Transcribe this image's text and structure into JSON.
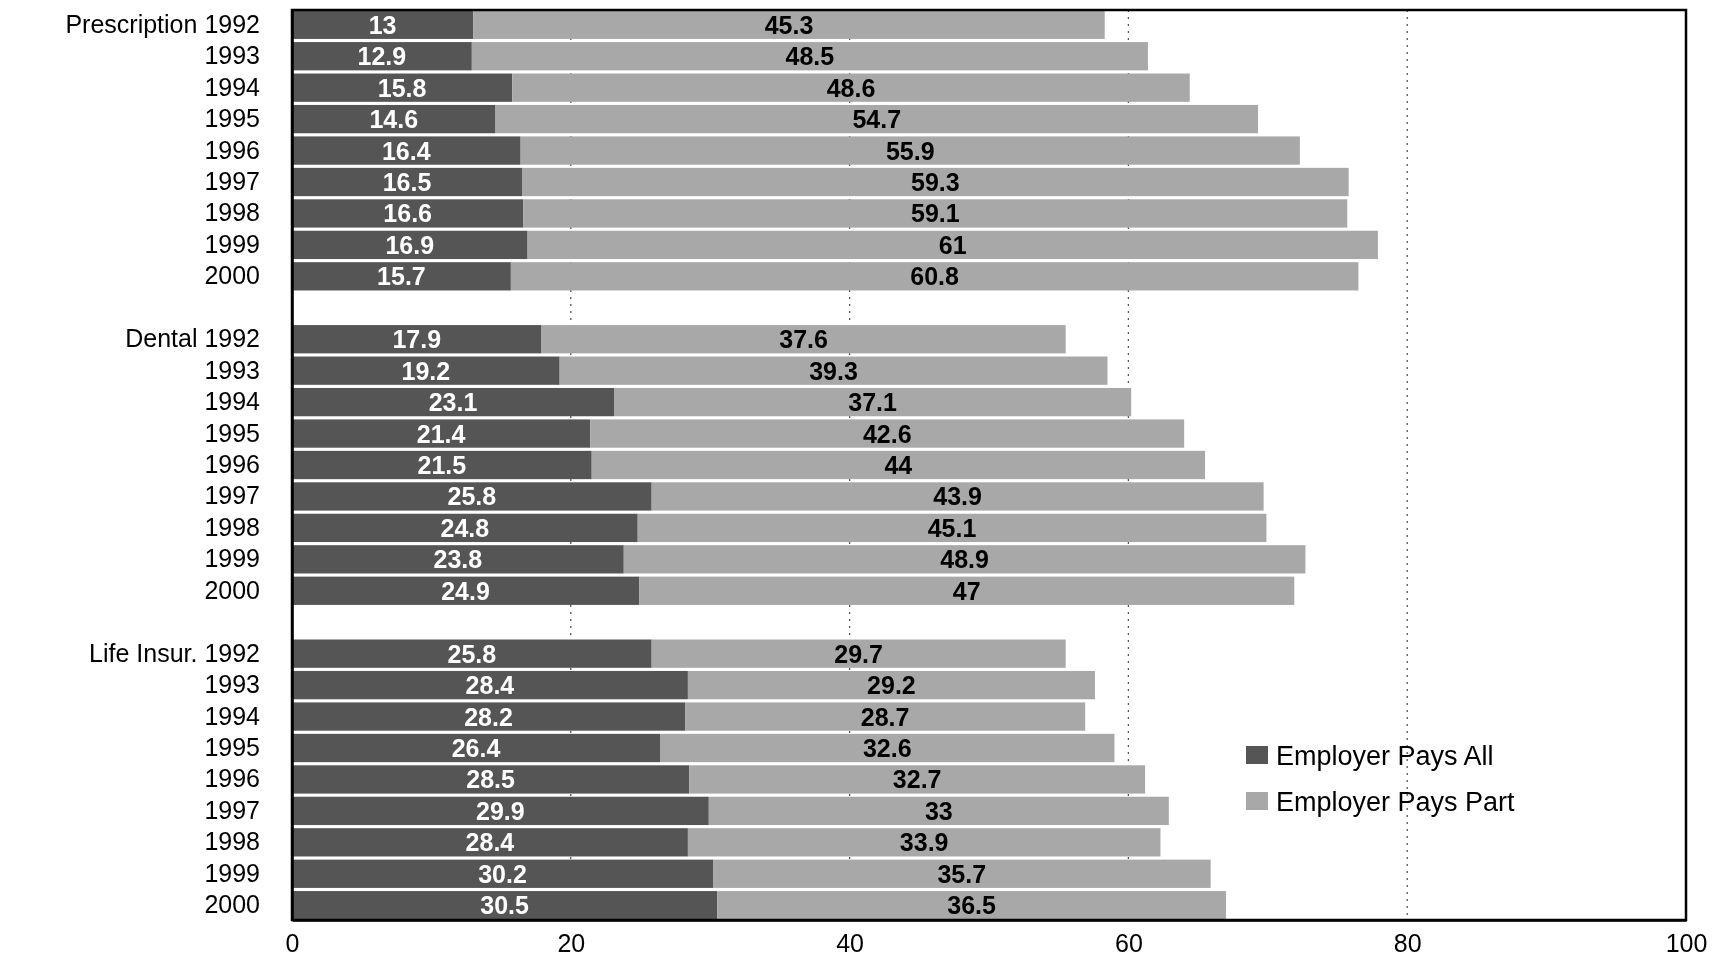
{
  "chart_data": {
    "type": "bar",
    "orientation": "horizontal",
    "stacked": true,
    "categories": [
      "Prescription 1992",
      "1993",
      "1994",
      "1995",
      "1996",
      "1997",
      "1998",
      "1999",
      "2000",
      null,
      "Dental 1992",
      "1993",
      "1994",
      "1995",
      "1996",
      "1997",
      "1998",
      "1999",
      "2000",
      null,
      "Life Insur. 1992",
      "1993",
      "1994",
      "1995",
      "1996",
      "1997",
      "1998",
      "1999",
      "2000"
    ],
    "series": [
      {
        "name": "Employer Pays All",
        "color": "#555555",
        "values": [
          13,
          12.9,
          15.8,
          14.6,
          16.4,
          16.5,
          16.6,
          16.9,
          15.7,
          null,
          17.9,
          19.2,
          23.1,
          21.4,
          21.5,
          25.8,
          24.8,
          23.8,
          24.9,
          null,
          25.8,
          28.4,
          28.2,
          26.4,
          28.5,
          29.9,
          28.4,
          30.2,
          30.5
        ]
      },
      {
        "name": "Employer Pays Part",
        "color": "#a8a8a8",
        "values": [
          45.3,
          48.5,
          48.6,
          54.7,
          55.9,
          59.3,
          59.1,
          61,
          60.8,
          null,
          37.6,
          39.3,
          37.1,
          42.6,
          44,
          43.9,
          45.1,
          48.9,
          47,
          null,
          29.7,
          29.2,
          28.7,
          32.6,
          32.7,
          33,
          33.9,
          35.7,
          36.5
        ]
      }
    ],
    "xlim": [
      0,
      100
    ],
    "xticks": [
      0,
      20,
      40,
      60,
      80,
      100
    ],
    "grid": "x",
    "legend": "bottom right",
    "data_labels": true
  }
}
